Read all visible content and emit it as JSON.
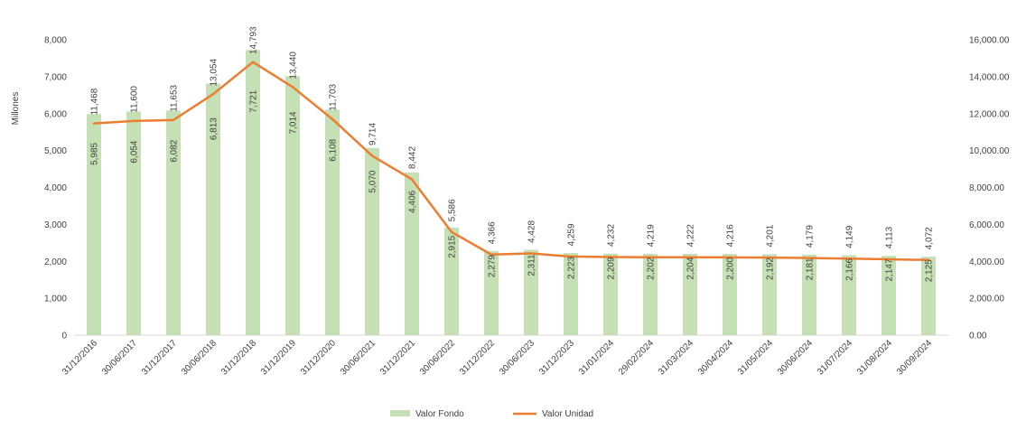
{
  "chart_data": {
    "type": "bar",
    "categories": [
      "31/12/2016",
      "30/06/2017",
      "31/12/2017",
      "30/06/2018",
      "31/12/2018",
      "31/12/2019",
      "31/12/2020",
      "30/06/2021",
      "31/12/2021",
      "30/06/2022",
      "31/12/2022",
      "30/06/2023",
      "31/12/2023",
      "31/01/2024",
      "29/02/2024",
      "31/03/2024",
      "30/04/2024",
      "31/05/2024",
      "30/06/2024",
      "31/07/2024",
      "31/08/2024",
      "30/09/2024"
    ],
    "series": [
      {
        "name": "Valor Fondo",
        "type": "bar",
        "axis": "left",
        "color": "#c5e0b4",
        "values": [
          5985,
          6054,
          6082,
          6813,
          7721,
          7014,
          6108,
          5070,
          4406,
          2915,
          2279,
          2311,
          2223,
          2209,
          2202,
          2204,
          2200,
          2192,
          2181,
          2166,
          2147,
          2125
        ],
        "labels": [
          "5,985",
          "6,054",
          "6,082",
          "6,813",
          "7,721",
          "7,014",
          "6,108",
          "5,070",
          "4,406",
          "2,915",
          "2,279",
          "2,311",
          "2,223",
          "2,209",
          "2,202",
          "2,204",
          "2,200",
          "2,192",
          "2,181",
          "2,166",
          "2,147",
          "2,125"
        ]
      },
      {
        "name": "Valor Unidad",
        "type": "line",
        "axis": "right",
        "color": "#ed7d31",
        "values": [
          11468,
          11600,
          11653,
          13054,
          14793,
          13440,
          11703,
          9714,
          8442,
          5586,
          4366,
          4428,
          4259,
          4232,
          4219,
          4222,
          4216,
          4201,
          4179,
          4149,
          4113,
          4072
        ],
        "labels": [
          "11,468",
          "11,600",
          "11,653",
          "13,054",
          "14,793",
          "13,440",
          "11,703",
          "9,714",
          "8,442",
          "5,586",
          "4,366",
          "4,428",
          "4,259",
          "4,232",
          "4,219",
          "4,222",
          "4,216",
          "4,201",
          "4,179",
          "4,149",
          "4,113",
          "4,072"
        ]
      }
    ],
    "ylabel": "Millones",
    "ylim": [
      0,
      8000
    ],
    "y_ticks": [
      "0",
      "1,000",
      "2,000",
      "3,000",
      "4,000",
      "5,000",
      "6,000",
      "7,000",
      "8,000"
    ],
    "y2lim": [
      0,
      16000
    ],
    "y2_ticks": [
      "0.00",
      "2,000.00",
      "4,000.00",
      "6,000.00",
      "8,000.00",
      "10,000.00",
      "12,000.00",
      "14,000.00",
      "16,000.00"
    ],
    "grid": false,
    "legend_position": "bottom"
  }
}
